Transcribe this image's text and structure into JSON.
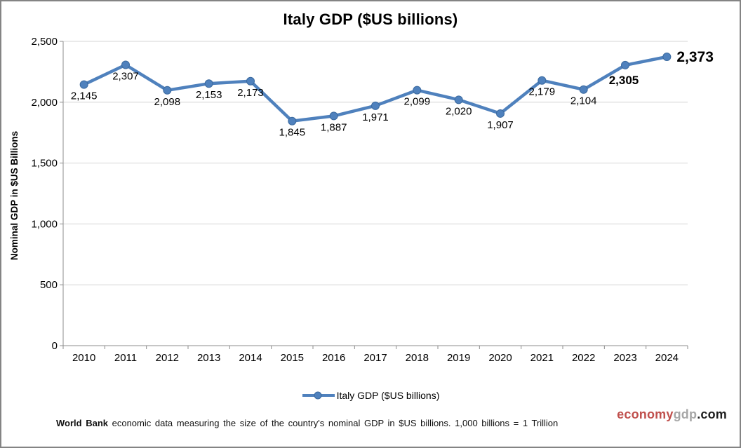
{
  "title": "Italy GDP ($US billions)",
  "chart_data": {
    "type": "line",
    "title": "Italy GDP ($US billions)",
    "categories": [
      "2010",
      "2011",
      "2012",
      "2013",
      "2014",
      "2015",
      "2016",
      "2017",
      "2018",
      "2019",
      "2020",
      "2021",
      "2022",
      "2023",
      "2024"
    ],
    "series": [
      {
        "name": "Italy GDP ($US billions)",
        "values": [
          2145,
          2307,
          2098,
          2153,
          2173,
          1845,
          1887,
          1971,
          2099,
          2020,
          1907,
          2179,
          2104,
          2305,
          2373
        ],
        "data_labels": [
          "2,145",
          "2,307",
          "2,098",
          "2,153",
          "2,173",
          "1,845",
          "1,887",
          "1,971",
          "2,099",
          "2,020",
          "1,907",
          "2,179",
          "2,104",
          "2,305",
          "2,373"
        ]
      }
    ],
    "xlabel": "",
    "ylabel": "Nominal GDP in $US Billions",
    "ylim": [
      0,
      2500
    ],
    "ytick_step": 500,
    "ytick_labels": [
      "0",
      "500",
      "1,000",
      "1,500",
      "2,000",
      "2,500"
    ],
    "grid": true,
    "legend_position": "bottom",
    "line_color": "#4f81bd",
    "marker_stroke": "#3a699e",
    "grid_color": "#d4d4d4",
    "axis_color": "#8c8c8c",
    "bold_label_index": 13,
    "callout_label_index": 14
  },
  "legend": {
    "label": "Italy GDP ($US billions)"
  },
  "footer": {
    "bold": "World Bank",
    "text": " economic data  measuring the size of the country's nominal GDP in $US billions. 1,000 billions = 1 Trillion"
  },
  "logo": {
    "part1": "economy",
    "part2": "gdp",
    "part3": ".com",
    "color1": "#c0504d",
    "color2": "#a6a6a6",
    "color3": "#1f1f1f"
  }
}
